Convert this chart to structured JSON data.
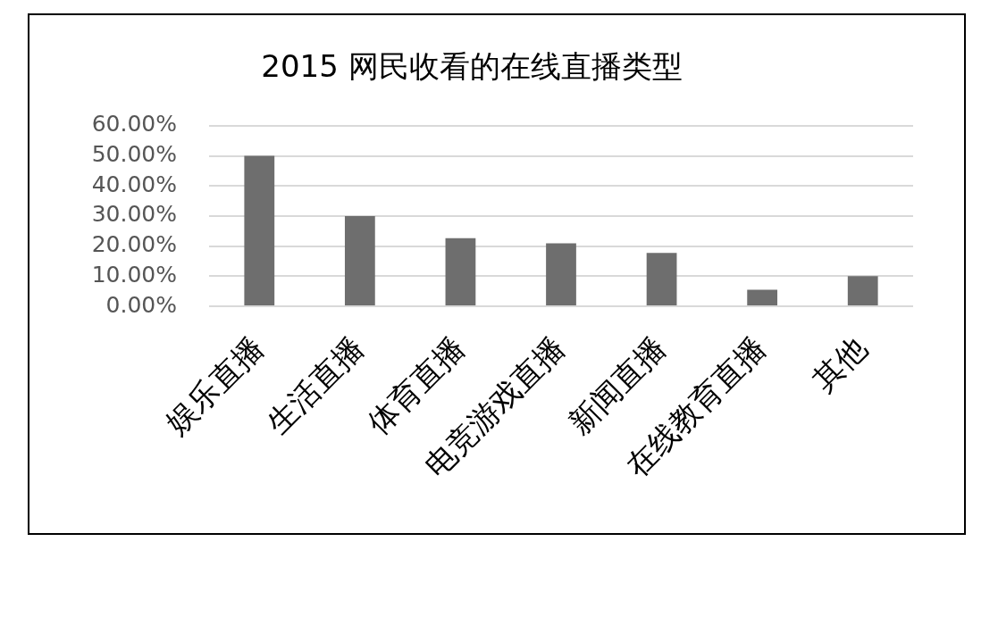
{
  "chart_data": {
    "type": "bar",
    "title": "2015 网民收看的在线直播类型",
    "categories": [
      "娱乐直播",
      "生活直播",
      "体育直播",
      "电竞游戏直播",
      "新闻直播",
      "在线教育直播",
      "其他"
    ],
    "values": [
      50,
      30,
      22.6,
      20.9,
      17.7,
      5.5,
      10
    ],
    "color": "#6e6e6e",
    "ylim": [
      0,
      60
    ],
    "yticks": [
      {
        "value": 0,
        "label": "0.00%"
      },
      {
        "value": 10,
        "label": "10.00%"
      },
      {
        "value": 20,
        "label": "20.00%"
      },
      {
        "value": 30,
        "label": "30.00%"
      },
      {
        "value": 40,
        "label": "40.00%"
      },
      {
        "value": 50,
        "label": "50.00%"
      },
      {
        "value": 60,
        "label": "60.00%"
      }
    ],
    "grid": "y"
  }
}
